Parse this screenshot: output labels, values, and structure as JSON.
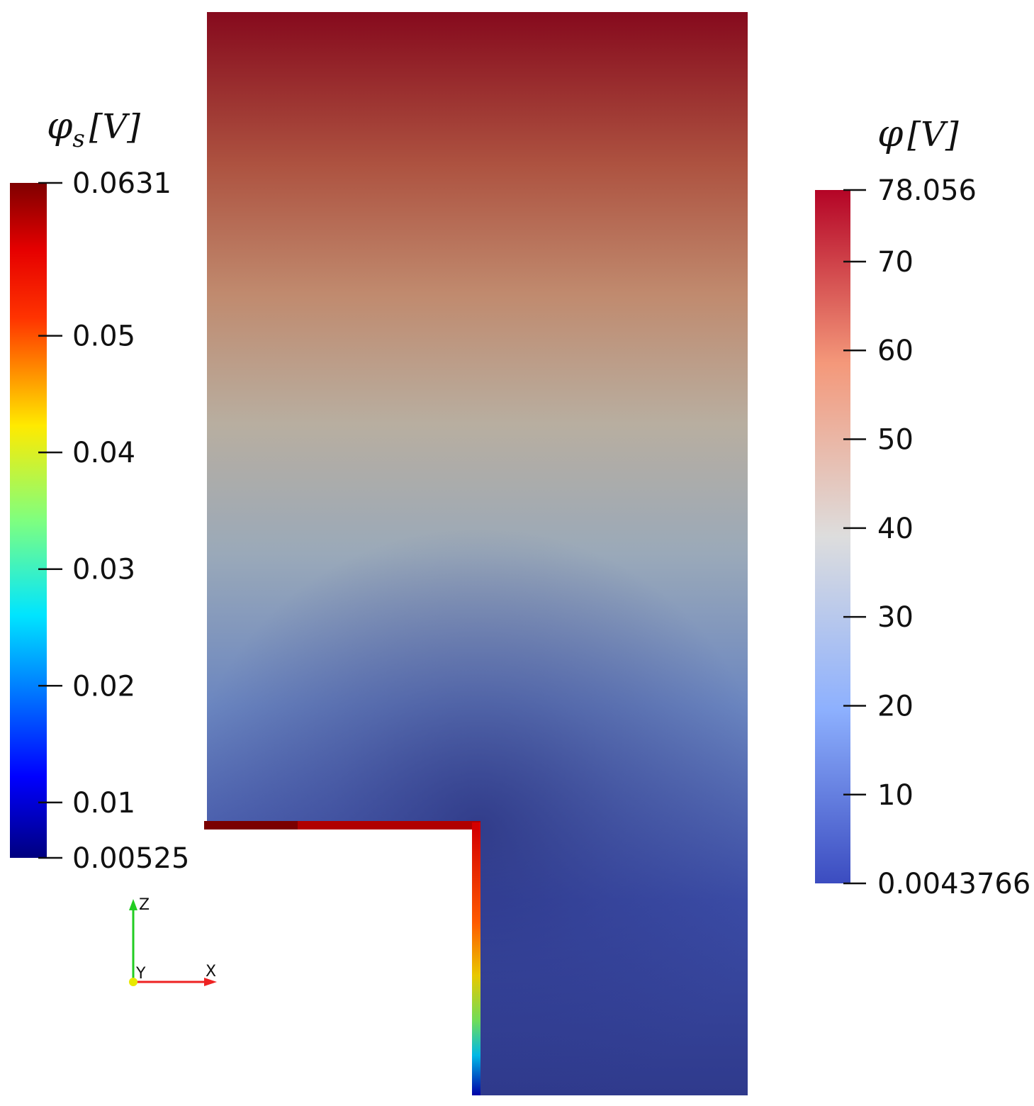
{
  "plot": {
    "field_description": "potential in domain (smooth cool-to-warm gradient, low at bottom, high at top)",
    "colors": {
      "top": "#850a1e",
      "mid": "#b7b7b1",
      "bottom": "#2e3b8f"
    }
  },
  "legend_left": {
    "title_main": "φ",
    "title_sub": "s",
    "title_unit": "[V]",
    "colormap": "jet",
    "range": [
      0.00525,
      0.0631
    ],
    "ticks": [
      {
        "value": 0.0631,
        "label": "0.0631"
      },
      {
        "value": 0.05,
        "label": "0.05"
      },
      {
        "value": 0.04,
        "label": "0.04"
      },
      {
        "value": 0.03,
        "label": "0.03"
      },
      {
        "value": 0.02,
        "label": "0.02"
      },
      {
        "value": 0.01,
        "label": "0.01"
      },
      {
        "value": 0.00525,
        "label": "0.00525"
      }
    ]
  },
  "legend_right": {
    "title_main": "φ",
    "title_unit": "[V]",
    "colormap": "cool-to-warm",
    "range": [
      0.0043766,
      78.056
    ],
    "ticks": [
      {
        "value": 78.056,
        "label": "78.056"
      },
      {
        "value": 70,
        "label": "70"
      },
      {
        "value": 60,
        "label": "60"
      },
      {
        "value": 50,
        "label": "50"
      },
      {
        "value": 40,
        "label": "40"
      },
      {
        "value": 30,
        "label": "30"
      },
      {
        "value": 20,
        "label": "20"
      },
      {
        "value": 10,
        "label": "10"
      },
      {
        "value": 0.0043766,
        "label": "0.0043766"
      }
    ]
  },
  "axes_triad": {
    "z_label": "Z",
    "y_label": "Y",
    "x_label": "X",
    "z_color": "#22cc22",
    "x_color": "#ee2222",
    "origin_color": "#e8e800"
  }
}
